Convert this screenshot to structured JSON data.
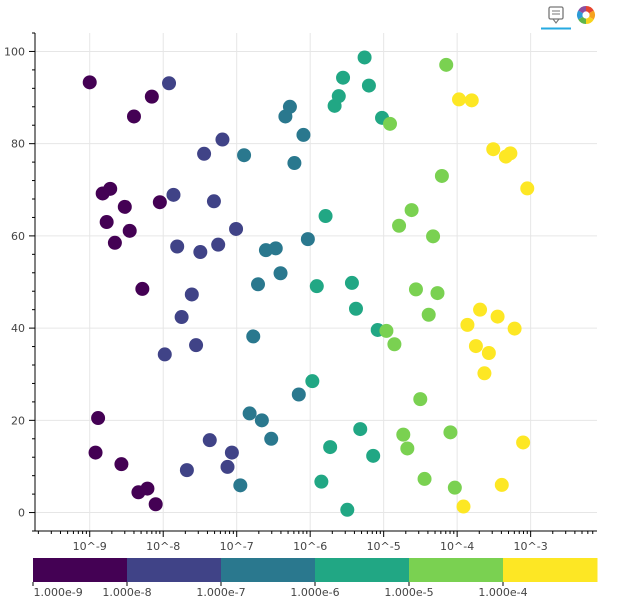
{
  "toolbar": {
    "tools": [
      {
        "icon": "hover-tooltip-icon",
        "active": true
      },
      {
        "icon": "bokeh-logo-icon",
        "active": false
      }
    ],
    "accent": "#26aae1"
  },
  "chart_data": {
    "type": "scatter",
    "x_scale": "log",
    "xlim": [
      1.8e-10,
      0.008
    ],
    "ylim": [
      -4,
      104
    ],
    "x_ticks": [
      {
        "v": 1e-09,
        "label": "10^-9"
      },
      {
        "v": 1e-08,
        "label": "10^-8"
      },
      {
        "v": 1e-07,
        "label": "10^-7"
      },
      {
        "v": 1e-06,
        "label": "10^-6"
      },
      {
        "v": 1e-05,
        "label": "10^-5"
      },
      {
        "v": 0.0001,
        "label": "10^-4"
      },
      {
        "v": 0.001,
        "label": "10^-3"
      }
    ],
    "y_ticks": [
      {
        "v": 0,
        "label": "0"
      },
      {
        "v": 20,
        "label": "20"
      },
      {
        "v": 40,
        "label": "40"
      },
      {
        "v": 60,
        "label": "60"
      },
      {
        "v": 80,
        "label": "80"
      },
      {
        "v": 100,
        "label": "100"
      }
    ],
    "grid": true,
    "color_mapper": {
      "type": "log",
      "low": 1e-09,
      "high": 0.001,
      "palette": [
        "#440154",
        "#404387",
        "#2A788E",
        "#21A784",
        "#7AD151",
        "#FDE724"
      ],
      "tick_labels": [
        "1.000e-9",
        "1.000e-8",
        "1.000e-7",
        "1.000e-6",
        "1.000e-5",
        "1.000e-4"
      ]
    },
    "points": [
      {
        "x": 1e-09,
        "y": 93.3
      },
      {
        "x": 1.2e-09,
        "y": 13.0
      },
      {
        "x": 1.3e-09,
        "y": 20.5
      },
      {
        "x": 1.5e-09,
        "y": 69.2
      },
      {
        "x": 1.7e-09,
        "y": 63.0
      },
      {
        "x": 1.9e-09,
        "y": 70.2
      },
      {
        "x": 2.2e-09,
        "y": 58.5
      },
      {
        "x": 2.7e-09,
        "y": 10.5
      },
      {
        "x": 3e-09,
        "y": 66.3
      },
      {
        "x": 3.5e-09,
        "y": 61.1
      },
      {
        "x": 4e-09,
        "y": 85.9
      },
      {
        "x": 4.6e-09,
        "y": 4.4
      },
      {
        "x": 5.2e-09,
        "y": 48.5
      },
      {
        "x": 6.1e-09,
        "y": 5.2
      },
      {
        "x": 7e-09,
        "y": 90.2
      },
      {
        "x": 7.9e-09,
        "y": 1.8
      },
      {
        "x": 9e-09,
        "y": 67.3
      },
      {
        "x": 1.05e-08,
        "y": 34.3
      },
      {
        "x": 1.2e-08,
        "y": 93.1
      },
      {
        "x": 1.38e-08,
        "y": 68.9
      },
      {
        "x": 1.55e-08,
        "y": 57.7
      },
      {
        "x": 1.78e-08,
        "y": 42.4
      },
      {
        "x": 2.1e-08,
        "y": 9.2
      },
      {
        "x": 2.45e-08,
        "y": 47.3
      },
      {
        "x": 2.8e-08,
        "y": 36.3
      },
      {
        "x": 3.2e-08,
        "y": 56.5
      },
      {
        "x": 3.6e-08,
        "y": 77.8
      },
      {
        "x": 4.3e-08,
        "y": 15.7
      },
      {
        "x": 4.9e-08,
        "y": 67.5
      },
      {
        "x": 5.6e-08,
        "y": 58.1
      },
      {
        "x": 6.4e-08,
        "y": 80.9
      },
      {
        "x": 7.5e-08,
        "y": 9.9
      },
      {
        "x": 8.6e-08,
        "y": 13.0
      },
      {
        "x": 9.8e-08,
        "y": 61.5
      },
      {
        "x": 1.12e-07,
        "y": 5.9
      },
      {
        "x": 1.26e-07,
        "y": 77.5
      },
      {
        "x": 1.5e-07,
        "y": 21.5
      },
      {
        "x": 1.68e-07,
        "y": 38.2
      },
      {
        "x": 1.95e-07,
        "y": 49.5
      },
      {
        "x": 2.2e-07,
        "y": 20.0
      },
      {
        "x": 2.5e-07,
        "y": 56.9
      },
      {
        "x": 2.95e-07,
        "y": 16.0
      },
      {
        "x": 3.4e-07,
        "y": 57.3
      },
      {
        "x": 3.95e-07,
        "y": 51.9
      },
      {
        "x": 4.6e-07,
        "y": 85.9
      },
      {
        "x": 5.3e-07,
        "y": 88.0
      },
      {
        "x": 6.1e-07,
        "y": 75.8
      },
      {
        "x": 7e-07,
        "y": 25.6
      },
      {
        "x": 8.1e-07,
        "y": 81.9
      },
      {
        "x": 9.3e-07,
        "y": 59.3
      },
      {
        "x": 1.07e-06,
        "y": 28.5
      },
      {
        "x": 1.23e-06,
        "y": 49.1
      },
      {
        "x": 1.42e-06,
        "y": 6.7
      },
      {
        "x": 1.62e-06,
        "y": 64.3
      },
      {
        "x": 1.87e-06,
        "y": 14.2
      },
      {
        "x": 2.15e-06,
        "y": 88.2
      },
      {
        "x": 2.45e-06,
        "y": 90.3
      },
      {
        "x": 2.8e-06,
        "y": 94.3
      },
      {
        "x": 3.2e-06,
        "y": 0.6
      },
      {
        "x": 3.7e-06,
        "y": 49.8
      },
      {
        "x": 4.2e-06,
        "y": 44.2
      },
      {
        "x": 4.8e-06,
        "y": 18.1
      },
      {
        "x": 5.5e-06,
        "y": 98.7
      },
      {
        "x": 6.3e-06,
        "y": 92.6
      },
      {
        "x": 7.2e-06,
        "y": 12.3
      },
      {
        "x": 8.3e-06,
        "y": 39.6
      },
      {
        "x": 9.5e-06,
        "y": 85.6
      },
      {
        "x": 1.09e-05,
        "y": 39.4
      },
      {
        "x": 1.22e-05,
        "y": 84.3
      },
      {
        "x": 1.4e-05,
        "y": 36.5
      },
      {
        "x": 1.62e-05,
        "y": 62.2
      },
      {
        "x": 1.85e-05,
        "y": 16.9
      },
      {
        "x": 2.1e-05,
        "y": 13.9
      },
      {
        "x": 2.4e-05,
        "y": 65.6
      },
      {
        "x": 2.75e-05,
        "y": 48.4
      },
      {
        "x": 3.15e-05,
        "y": 24.6
      },
      {
        "x": 3.6e-05,
        "y": 7.3
      },
      {
        "x": 4.1e-05,
        "y": 42.9
      },
      {
        "x": 4.7e-05,
        "y": 59.9
      },
      {
        "x": 5.4e-05,
        "y": 47.6
      },
      {
        "x": 6.2e-05,
        "y": 73.0
      },
      {
        "x": 7.1e-05,
        "y": 97.1
      },
      {
        "x": 8.1e-05,
        "y": 17.4
      },
      {
        "x": 9.3e-05,
        "y": 5.4
      },
      {
        "x": 0.000106,
        "y": 89.6
      },
      {
        "x": 0.000122,
        "y": 1.3
      },
      {
        "x": 0.000138,
        "y": 40.7
      },
      {
        "x": 0.000158,
        "y": 89.4
      },
      {
        "x": 0.00018,
        "y": 36.1
      },
      {
        "x": 0.000205,
        "y": 44.0
      },
      {
        "x": 0.000235,
        "y": 30.2
      },
      {
        "x": 0.00027,
        "y": 34.6
      },
      {
        "x": 0.00031,
        "y": 78.8
      },
      {
        "x": 0.000355,
        "y": 42.5
      },
      {
        "x": 0.000405,
        "y": 6.0
      },
      {
        "x": 0.00046,
        "y": 77.2
      },
      {
        "x": 0.00053,
        "y": 77.9
      },
      {
        "x": 0.000605,
        "y": 39.9
      },
      {
        "x": 0.00079,
        "y": 15.2
      },
      {
        "x": 0.0009,
        "y": 70.3
      }
    ]
  }
}
